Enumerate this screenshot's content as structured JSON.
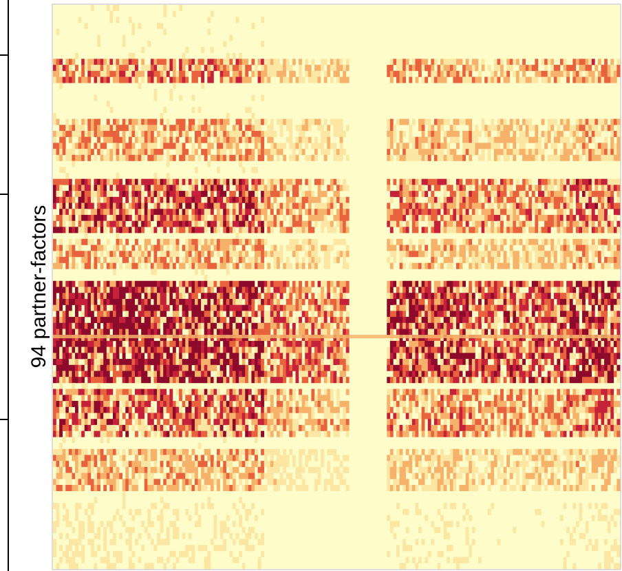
{
  "chart_data": {
    "type": "heatmap",
    "title": "",
    "xlabel": "",
    "ylabel": "94 partner-factors",
    "rows": 94,
    "grid": false,
    "legend": "none",
    "colormap": [
      "#fefdc9",
      "#fbe7a3",
      "#f6b26b",
      "#e8623e",
      "#c5213a",
      "#8e0a2b"
    ],
    "background_color": "#fefdc9",
    "y_ticks": [
      "",
      "",
      ""
    ],
    "row_groups": [
      {
        "rows": [
          0,
          9
        ],
        "density": "low"
      },
      {
        "rows": [
          10,
          20
        ],
        "density": "medium"
      },
      {
        "rows": [
          21,
          32
        ],
        "density": "high"
      },
      {
        "rows": [
          33,
          47
        ],
        "density": "very high"
      },
      {
        "rows": [
          48,
          64
        ],
        "density": "medium"
      },
      {
        "rows": [
          65,
          93
        ],
        "density": "low"
      }
    ]
  }
}
